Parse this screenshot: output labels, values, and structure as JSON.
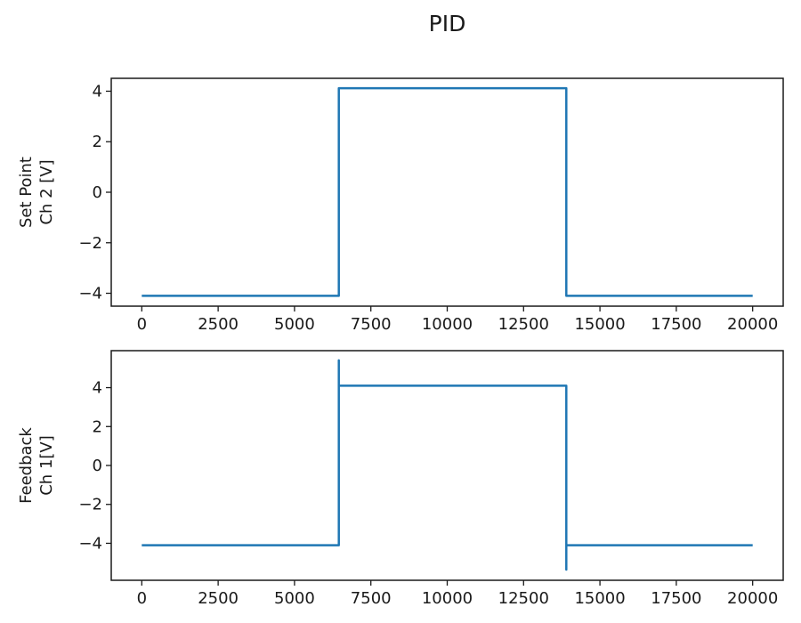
{
  "figure": {
    "title": "PID",
    "background": "#ffffff",
    "accent_color": "#1f77b4",
    "spine_color": "#1a1a1a"
  },
  "chart_data": [
    {
      "type": "line",
      "name": "set-point",
      "title": "",
      "xlabel": "",
      "ylabel": "Set Point\nCh 2 [V]",
      "x_ticks": [
        0,
        2500,
        5000,
        7500,
        10000,
        12500,
        15000,
        17500,
        20000
      ],
      "y_ticks": [
        -4,
        -2,
        0,
        2,
        4
      ],
      "xlim": [
        -1000,
        21000
      ],
      "ylim": [
        -4.51,
        4.51
      ],
      "grid": false,
      "legend": null,
      "series": [
        {
          "name": "Set Point Ch 2",
          "color": "#1f77b4",
          "points": [
            [
              0,
              -4.1
            ],
            [
              6450,
              -4.1
            ],
            [
              6450,
              4.12
            ],
            [
              13900,
              4.12
            ],
            [
              13900,
              -4.1
            ],
            [
              20000,
              -4.1
            ]
          ]
        }
      ]
    },
    {
      "type": "line",
      "name": "feedback",
      "title": "",
      "xlabel": "",
      "ylabel": "Feedback\nCh 1[V]",
      "x_ticks": [
        0,
        2500,
        5000,
        7500,
        10000,
        12500,
        15000,
        17500,
        20000
      ],
      "y_ticks": [
        -4,
        -2,
        0,
        2,
        4
      ],
      "xlim": [
        -1000,
        21000
      ],
      "ylim": [
        -5.9,
        5.9
      ],
      "grid": false,
      "legend": null,
      "series": [
        {
          "name": "Feedback Ch 1",
          "color": "#1f77b4",
          "points": [
            [
              0,
              -4.1
            ],
            [
              6450,
              -4.1
            ],
            [
              6450,
              5.4
            ],
            [
              6450,
              4.1
            ],
            [
              13900,
              4.1
            ],
            [
              13900,
              -5.35
            ],
            [
              13900,
              -4.1
            ],
            [
              20000,
              -4.1
            ]
          ]
        }
      ]
    }
  ]
}
